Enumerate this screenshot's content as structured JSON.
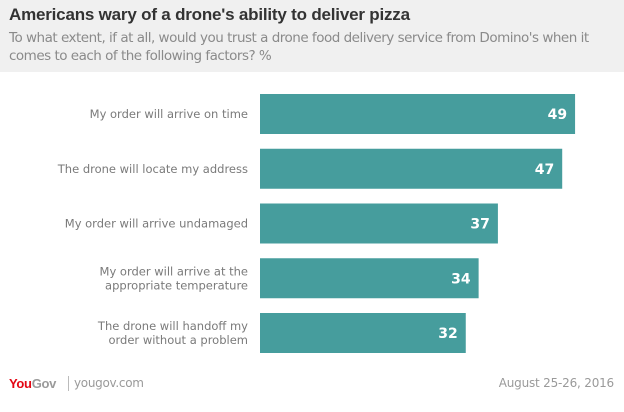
{
  "header": {
    "title": "Americans wary of a drone's ability to deliver pizza",
    "subtitle": "To what extent, if at all, would you trust a drone food delivery service from Domino's when it comes to each of the following factors? %"
  },
  "footer": {
    "logo_you": "You",
    "logo_gov": "Gov",
    "site": "yougov.com",
    "date": "August 25-26, 2016"
  },
  "colors": {
    "bar": "#469d9d",
    "header_bg": "#f0f0f0",
    "logo_red": "#e30613"
  },
  "chart_data": {
    "type": "bar",
    "orientation": "horizontal",
    "title": "Americans wary of a drone's ability to deliver pizza",
    "subtitle": "To what extent, if at all, would you trust a drone food delivery service from Domino's when it comes to each of the following factors? %",
    "categories": [
      [
        "My order will arrive on time"
      ],
      [
        "The drone will locate my address"
      ],
      [
        "My order will arrive undamaged"
      ],
      [
        "My order will arrive at the",
        "appropriate temperature"
      ],
      [
        "The drone will handoff my",
        "order without a problem"
      ]
    ],
    "values": [
      49,
      47,
      37,
      34,
      32
    ],
    "data_labels": [
      "49",
      "47",
      "37",
      "34",
      "32"
    ],
    "xlabel": "",
    "ylabel": "",
    "xlim": [
      0,
      50
    ],
    "grid": false,
    "legend": "none"
  }
}
